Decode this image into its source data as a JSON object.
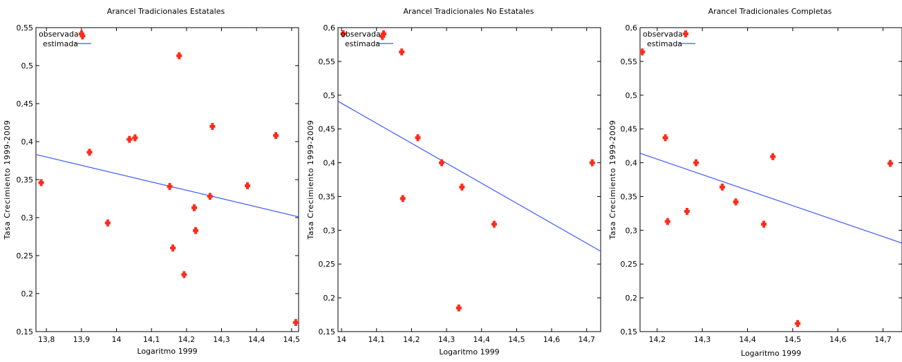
{
  "chart_data": [
    {
      "type": "scatter",
      "title": "Arancel Tradicionales Estatales",
      "xlabel": "Logaritmo 1999",
      "ylabel": "Tasa Crecimiento 1999-2009",
      "xlim": [
        13.77,
        14.52
      ],
      "ylim": [
        0.15,
        0.55
      ],
      "xticks": [
        "13,8",
        "13,9",
        "14",
        "14,1",
        "14,2",
        "14,3",
        "14,4",
        "14,5"
      ],
      "yticks": [
        "0,15",
        "0,2",
        "0,25",
        "0,3",
        "0,35",
        "0,4",
        "0,45",
        "0,5",
        "0,55"
      ],
      "legend": {
        "position": "top-left",
        "observed": "observada",
        "fitted": "estimada"
      },
      "colors": {
        "observed": "#ff2a1a",
        "fitted": "#3a57ff"
      },
      "grid": false,
      "series": [
        {
          "name": "observada",
          "points": [
            [
              13.785,
              0.346
            ],
            [
              13.903,
              0.539
            ],
            [
              13.923,
              0.386
            ],
            [
              13.975,
              0.293
            ],
            [
              14.037,
              0.403
            ],
            [
              14.053,
              0.405
            ],
            [
              14.152,
              0.341
            ],
            [
              14.161,
              0.26
            ],
            [
              14.179,
              0.513
            ],
            [
              14.193,
              0.225
            ],
            [
              14.222,
              0.313
            ],
            [
              14.226,
              0.283
            ],
            [
              14.267,
              0.328
            ],
            [
              14.274,
              0.42
            ],
            [
              14.374,
              0.342
            ],
            [
              14.455,
              0.408
            ],
            [
              14.512,
              0.162
            ]
          ]
        },
        {
          "name": "estimada",
          "line": [
            [
              13.77,
              0.383
            ],
            [
              14.52,
              0.301
            ]
          ]
        }
      ]
    },
    {
      "type": "scatter",
      "title": "Arancel Tradicionales No Estatales",
      "xlabel": "Logaritmo 1999",
      "ylabel": "Tasa Crecimiento 1999-2009",
      "xlim": [
        13.99,
        14.74
      ],
      "ylim": [
        0.15,
        0.6
      ],
      "xticks": [
        "14",
        "14,1",
        "14,2",
        "14,3",
        "14,4",
        "14,5",
        "14,6",
        "14,7"
      ],
      "yticks": [
        "0,15",
        "0,2",
        "0,25",
        "0,3",
        "0,35",
        "0,4",
        "0,45",
        "0,5",
        "0,55",
        "0,6"
      ],
      "legend": {
        "position": "top-left",
        "observed": "observada",
        "fitted": "estimada"
      },
      "colors": {
        "observed": "#ff2a1a",
        "fitted": "#3a57ff"
      },
      "grid": false,
      "series": [
        {
          "name": "observada",
          "points": [
            [
              14.005,
              0.591
            ],
            [
              14.117,
              0.587
            ],
            [
              14.172,
              0.564
            ],
            [
              14.175,
              0.347
            ],
            [
              14.218,
              0.437
            ],
            [
              14.286,
              0.4
            ],
            [
              14.335,
              0.185
            ],
            [
              14.344,
              0.364
            ],
            [
              14.436,
              0.309
            ],
            [
              14.716,
              0.4
            ]
          ]
        },
        {
          "name": "estimada",
          "line": [
            [
              13.99,
              0.491
            ],
            [
              14.74,
              0.269
            ]
          ]
        }
      ]
    },
    {
      "type": "scatter",
      "title": "Arancel Tradicionales Completas",
      "xlabel": "Logaritmo 1999",
      "ylabel": "Tasa Crecimiento 1999-2009",
      "xlim": [
        14.162,
        14.742
      ],
      "ylim": [
        0.15,
        0.6
      ],
      "xticks": [
        "14,2",
        "14,3",
        "14,4",
        "14,5",
        "14,6",
        "14,7"
      ],
      "yticks": [
        "0,15",
        "0,2",
        "0,25",
        "0,3",
        "0,35",
        "0,4",
        "0,45",
        "0,5",
        "0,55",
        "0,6"
      ],
      "legend": {
        "position": "top-left",
        "observed": "observada",
        "fitted": "estimada"
      },
      "colors": {
        "observed": "#ff2a1a",
        "fitted": "#3a57ff"
      },
      "grid": false,
      "series": [
        {
          "name": "observada",
          "points": [
            [
              14.167,
              0.564
            ],
            [
              14.218,
              0.437
            ],
            [
              14.223,
              0.313
            ],
            [
              14.266,
              0.328
            ],
            [
              14.286,
              0.4
            ],
            [
              14.344,
              0.364
            ],
            [
              14.374,
              0.342
            ],
            [
              14.436,
              0.309
            ],
            [
              14.456,
              0.409
            ],
            [
              14.511,
              0.162
            ],
            [
              14.716,
              0.399
            ]
          ]
        },
        {
          "name": "estimada",
          "line": [
            [
              14.162,
              0.414
            ],
            [
              14.742,
              0.281
            ]
          ]
        }
      ]
    }
  ]
}
